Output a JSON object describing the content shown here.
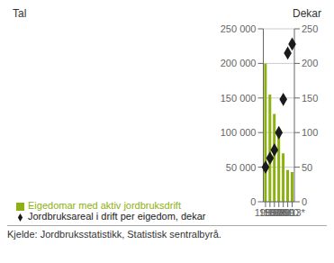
{
  "chart_data": {
    "type": "bar",
    "categories": [
      "1959",
      "1969",
      "1979",
      "1989",
      "1999",
      "2010",
      "2013*"
    ],
    "series": [
      {
        "name": "Eigedomar med aktiv jordbruksdrift",
        "type": "bar",
        "color": "#8db012",
        "values": [
          200000,
          155000,
          127000,
          100000,
          70000,
          46000,
          43000
        ]
      },
      {
        "name": "Jordbruksareal i drift per eigedom, dekar",
        "type": "scatter",
        "marker": "diamond",
        "axis": "y2",
        "color": "#1a1a1a",
        "values": [
          50,
          63,
          75,
          100,
          148,
          215,
          228
        ]
      }
    ],
    "ylabel": "Tal",
    "y2label": "Dekar",
    "ylim": [
      0,
      250000
    ],
    "yticks": [
      0,
      {
        "value": 50000,
        "label": "50 000"
      },
      {
        "value": 100000,
        "label": "100 000"
      },
      {
        "value": 150000,
        "label": "150 000"
      },
      {
        "value": 200000,
        "label": "200 000"
      },
      {
        "value": 250000,
        "label": "250 000"
      }
    ],
    "y2lim": [
      0,
      250
    ],
    "y2ticks": [
      0,
      50,
      100,
      150,
      200,
      250
    ],
    "grid": true,
    "legend": "bottom",
    "annotations": [
      "Kjelde: Jordbruksstatistikk, Statistisk sentralbyrå."
    ]
  }
}
